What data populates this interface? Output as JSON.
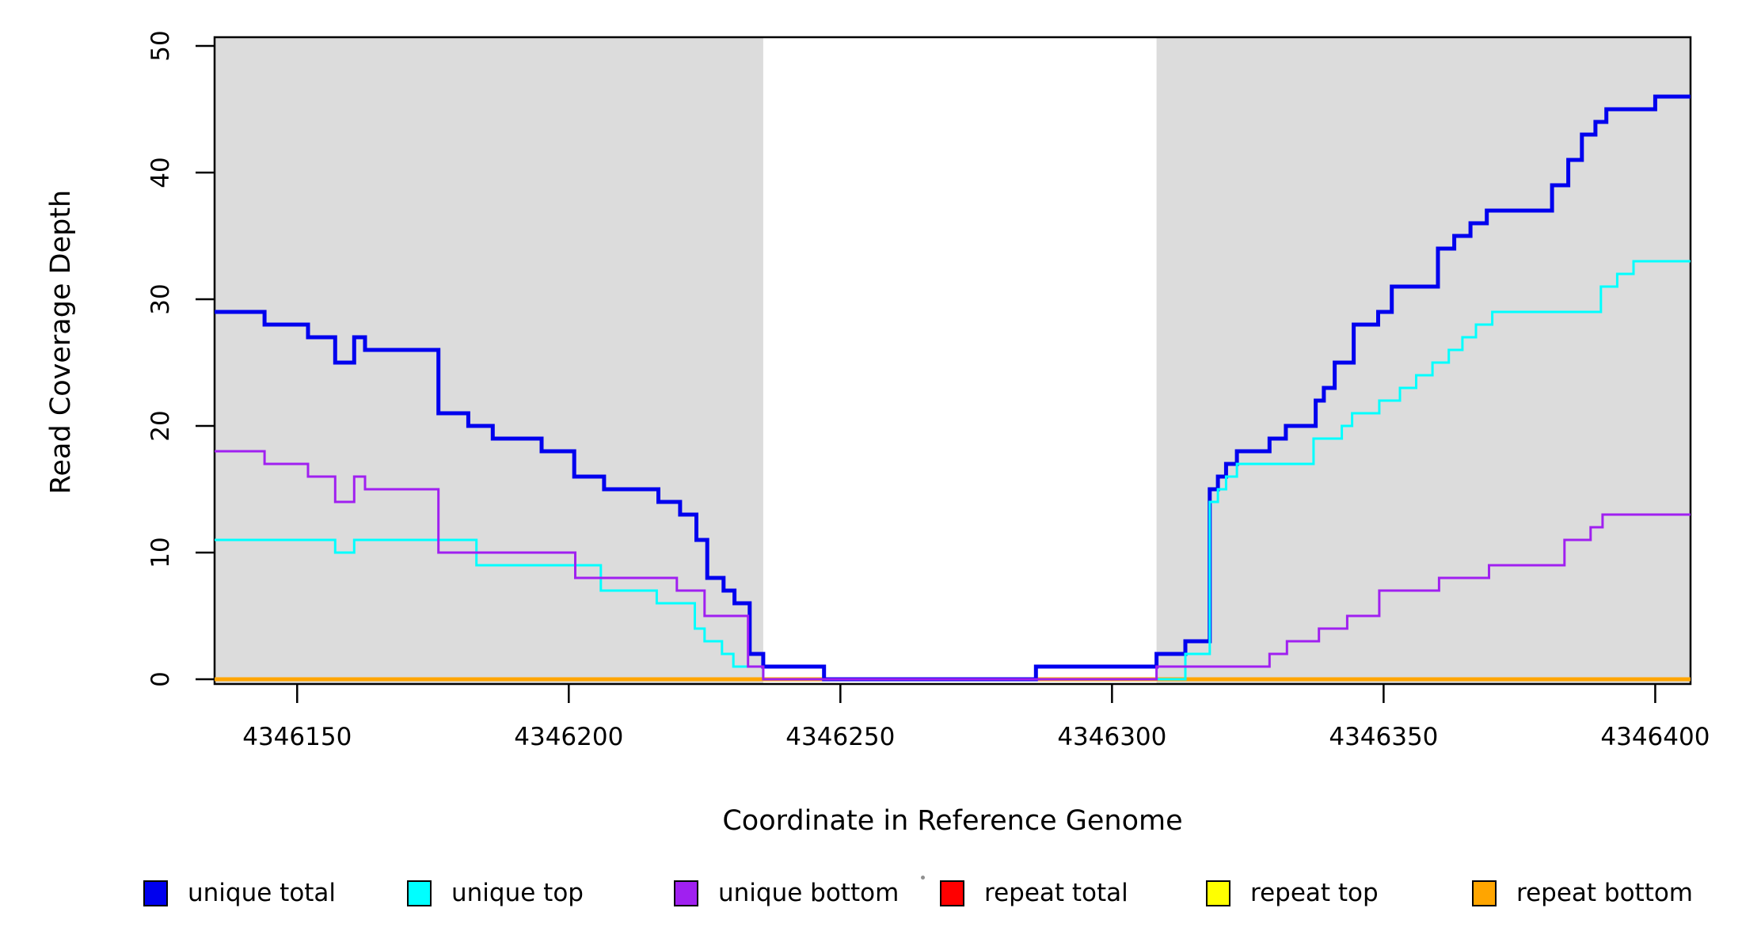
{
  "figure": {
    "background": "#FFFFFF",
    "plot_box_color": "#000000",
    "band_color": "#DCDCDC"
  },
  "chart_data": {
    "type": "line",
    "subtype": "step",
    "title": "",
    "xlabel": "Coordinate in Reference Genome",
    "ylabel": "Read Coverage Depth",
    "xlim": [
      4346134.8,
      4346406.5
    ],
    "ylim": [
      -0.4,
      50.7
    ],
    "x_ticks": [
      4346150,
      4346200,
      4346250,
      4346300,
      4346350,
      4346400
    ],
    "y_ticks": [
      0,
      10,
      20,
      30,
      40,
      50
    ],
    "grid": false,
    "legend_position": "bottom",
    "shaded_regions": [
      {
        "x0": 4346134.8,
        "x1": 4346235.8,
        "color": "#DCDCDC"
      },
      {
        "x0": 4346308.2,
        "x1": 4346406.5,
        "color": "#DCDCDC"
      }
    ],
    "series": [
      {
        "name": "repeat total",
        "color": "#FF0000",
        "width": 3,
        "points": [
          [
            4346134.8,
            0
          ]
        ]
      },
      {
        "name": "repeat top",
        "color": "#FFFF00",
        "width": 3,
        "points": [
          [
            4346134.8,
            0
          ]
        ]
      },
      {
        "name": "repeat bottom",
        "color": "#FFA500",
        "width": 5,
        "points": [
          [
            4346134.8,
            0
          ]
        ]
      },
      {
        "name": "unique total",
        "color": "#0000EE",
        "width": 5,
        "points": [
          [
            4346134.8,
            29
          ],
          [
            4346144,
            28
          ],
          [
            4346152,
            27
          ],
          [
            4346157,
            25
          ],
          [
            4346160.5,
            27
          ],
          [
            4346162.5,
            26
          ],
          [
            4346176,
            21
          ],
          [
            4346181.5,
            20
          ],
          [
            4346186,
            19
          ],
          [
            4346195,
            18
          ],
          [
            4346201,
            16
          ],
          [
            4346206.5,
            15
          ],
          [
            4346216.5,
            14
          ],
          [
            4346220.5,
            13
          ],
          [
            4346223.5,
            11
          ],
          [
            4346225.5,
            8
          ],
          [
            4346228.5,
            7
          ],
          [
            4346230.5,
            6
          ],
          [
            4346233.3,
            2
          ],
          [
            4346235.8,
            1
          ],
          [
            4346247,
            0
          ],
          [
            4346286,
            1
          ],
          [
            4346308.2,
            2
          ],
          [
            4346313.5,
            3
          ],
          [
            4346318,
            15
          ],
          [
            4346319.5,
            16
          ],
          [
            4346321,
            17
          ],
          [
            4346323,
            18
          ],
          [
            4346329,
            19
          ],
          [
            4346332,
            20
          ],
          [
            4346337.5,
            22
          ],
          [
            4346339,
            23
          ],
          [
            4346341,
            25
          ],
          [
            4346344.5,
            28
          ],
          [
            4346349,
            29
          ],
          [
            4346351.5,
            31
          ],
          [
            4346360,
            34
          ],
          [
            4346363,
            35
          ],
          [
            4346366,
            36
          ],
          [
            4346369,
            37
          ],
          [
            4346381,
            39
          ],
          [
            4346384,
            41
          ],
          [
            4346386.5,
            43
          ],
          [
            4346389,
            44
          ],
          [
            4346391,
            45
          ],
          [
            4346400,
            46
          ]
        ]
      },
      {
        "name": "unique top",
        "color": "#00FFFF",
        "width": 3,
        "points": [
          [
            4346134.8,
            11
          ],
          [
            4346157,
            10
          ],
          [
            4346160.5,
            11
          ],
          [
            4346183,
            9
          ],
          [
            4346205.9,
            7
          ],
          [
            4346216.2,
            6
          ],
          [
            4346223.2,
            4
          ],
          [
            4346225,
            3
          ],
          [
            4346228.2,
            2
          ],
          [
            4346230.3,
            1
          ],
          [
            4346235.8,
            0
          ],
          [
            4346313.5,
            2
          ],
          [
            4346318,
            14
          ],
          [
            4346319.5,
            15
          ],
          [
            4346321,
            16
          ],
          [
            4346323,
            17
          ],
          [
            4346337.1,
            19
          ],
          [
            4346342.3,
            20
          ],
          [
            4346344.2,
            21
          ],
          [
            4346349.2,
            22
          ],
          [
            4346353,
            23
          ],
          [
            4346356,
            24
          ],
          [
            4346359,
            25
          ],
          [
            4346362,
            26
          ],
          [
            4346364.5,
            27
          ],
          [
            4346367,
            28
          ],
          [
            4346370,
            29
          ],
          [
            4346390,
            31
          ],
          [
            4346393,
            32
          ],
          [
            4346396,
            33
          ]
        ]
      },
      {
        "name": "unique bottom",
        "color": "#A020F0",
        "width": 3,
        "points": [
          [
            4346134.8,
            18
          ],
          [
            4346144,
            17
          ],
          [
            4346152,
            16
          ],
          [
            4346157,
            14
          ],
          [
            4346160.5,
            16
          ],
          [
            4346162.5,
            15
          ],
          [
            4346176,
            10
          ],
          [
            4346201.2,
            8
          ],
          [
            4346219.9,
            7
          ],
          [
            4346225,
            5
          ],
          [
            4346233,
            1
          ],
          [
            4346235.8,
            0
          ],
          [
            4346308.2,
            1
          ],
          [
            4346329,
            2
          ],
          [
            4346332.2,
            3
          ],
          [
            4346338.1,
            4
          ],
          [
            4346343.3,
            5
          ],
          [
            4346349.2,
            7
          ],
          [
            4346360.2,
            8
          ],
          [
            4346369.4,
            9
          ],
          [
            4346383.3,
            11
          ],
          [
            4346388.1,
            12
          ],
          [
            4346390.3,
            13
          ]
        ]
      }
    ],
    "legend": [
      {
        "label": "unique total",
        "color": "#0000EE"
      },
      {
        "label": "unique top",
        "color": "#00FFFF"
      },
      {
        "label": "unique bottom",
        "color": "#A020F0"
      },
      {
        "label": "repeat total",
        "color": "#FF0000"
      },
      {
        "label": "repeat top",
        "color": "#FFFF00"
      },
      {
        "label": "repeat bottom",
        "color": "#FFA500"
      }
    ]
  }
}
